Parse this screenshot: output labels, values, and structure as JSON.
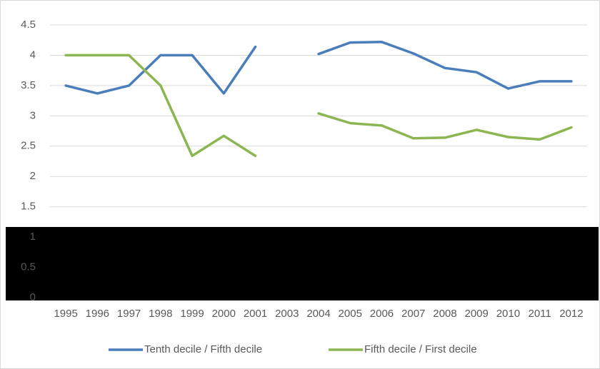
{
  "chart_data": {
    "type": "line",
    "categories": [
      "1995",
      "1996",
      "1997",
      "1998",
      "1999",
      "2000",
      "2001",
      "2003",
      "2004",
      "2005",
      "2006",
      "2007",
      "2008",
      "2009",
      "2010",
      "2011",
      "2012"
    ],
    "series": [
      {
        "name": "Tenth decile / Fifth decile",
        "color": "#4a7ebb",
        "values": [
          3.5,
          3.37,
          3.5,
          4.0,
          4.0,
          3.37,
          4.14,
          null,
          4.02,
          4.21,
          4.22,
          4.03,
          3.79,
          3.72,
          3.45,
          3.57,
          3.57
        ]
      },
      {
        "name": "Fifth decile / First decile",
        "color": "#8cb652",
        "values": [
          4.0,
          4.0,
          4.0,
          3.5,
          2.34,
          2.67,
          2.34,
          null,
          3.04,
          2.88,
          2.84,
          2.63,
          2.64,
          2.77,
          2.65,
          2.61,
          2.81
        ]
      }
    ],
    "ylim": [
      0,
      4.5
    ],
    "yticks": [
      0,
      0.5,
      1,
      1.5,
      2,
      2.5,
      3,
      3.5,
      4,
      4.5
    ],
    "grid": true,
    "legend": "bottom"
  }
}
